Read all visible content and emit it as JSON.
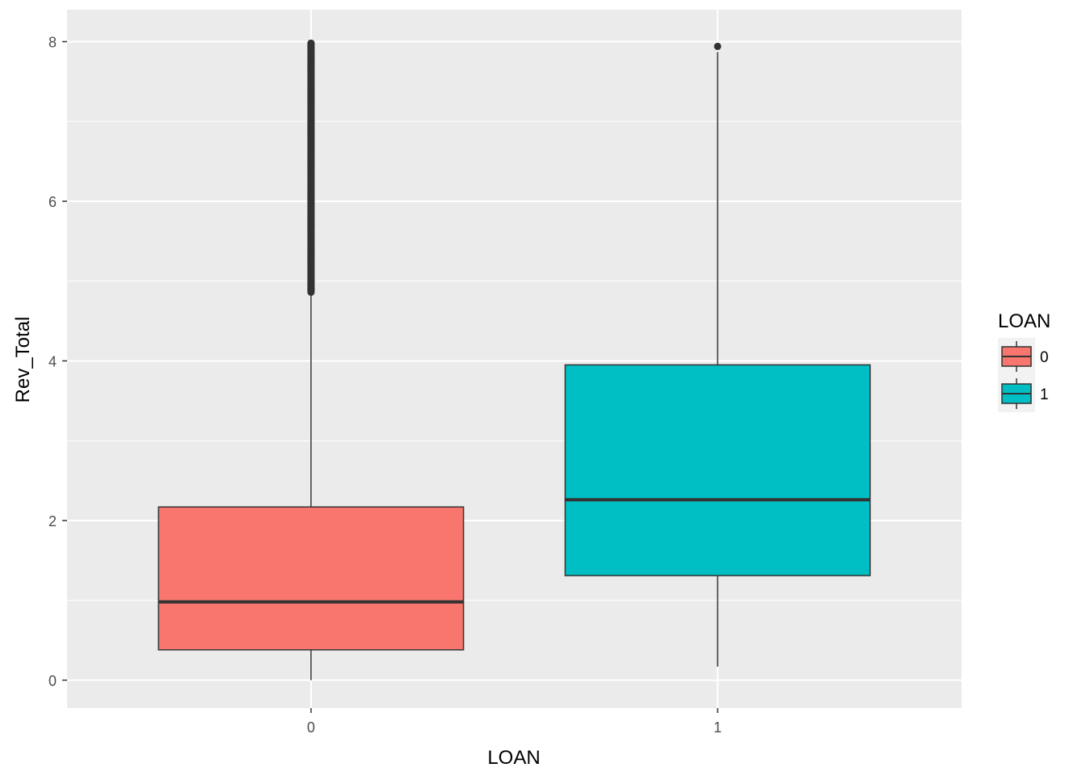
{
  "chart_data": {
    "type": "box",
    "xlabel": "LOAN",
    "ylabel": "Rev_Total",
    "categories": [
      "0",
      "1"
    ],
    "ylim": [
      -0.35,
      8.4
    ],
    "yticks": [
      0,
      2,
      4,
      6,
      8
    ],
    "grid": true,
    "legend": {
      "title": "LOAN",
      "position": "right",
      "entries": [
        {
          "label": "0",
          "color": "#F8766D"
        },
        {
          "label": "1",
          "color": "#00BFC4"
        }
      ]
    },
    "boxes": [
      {
        "category": "0",
        "color": "#F8766D",
        "whisker_low": 0.0,
        "q1": 0.38,
        "median": 0.98,
        "q3": 2.17,
        "whisker_high": 4.86,
        "outlier_range": [
          4.86,
          7.98
        ],
        "outliers": [
          4.9,
          5.0,
          5.1,
          5.2,
          5.3,
          5.4,
          5.5,
          5.6,
          5.7,
          5.8,
          5.9,
          6.0,
          6.1,
          6.2,
          6.3,
          6.4,
          6.5,
          6.6,
          6.7,
          6.8,
          6.9,
          7.0,
          7.1,
          7.2,
          7.3,
          7.4,
          7.5,
          7.6,
          7.7,
          7.8,
          7.9,
          7.98
        ]
      },
      {
        "category": "1",
        "color": "#00BFC4",
        "whisker_low": 0.17,
        "q1": 1.31,
        "median": 2.26,
        "q3": 3.95,
        "whisker_high": 7.87,
        "outliers": [
          7.94
        ]
      }
    ]
  }
}
